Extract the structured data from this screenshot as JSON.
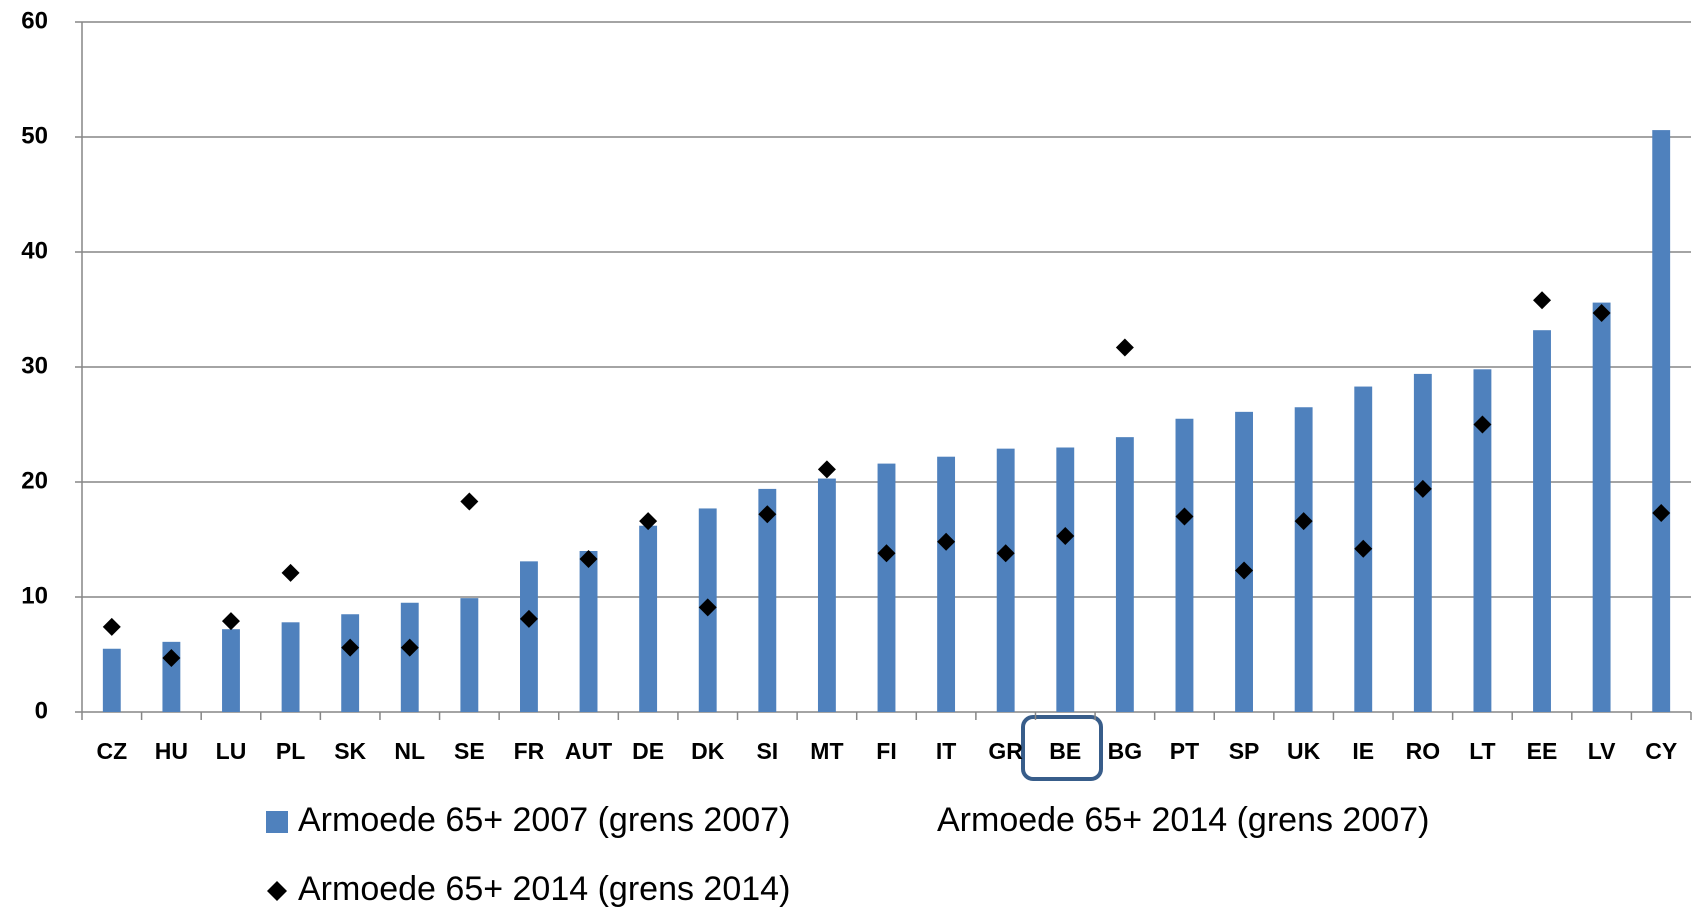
{
  "chart_data": {
    "type": "bar",
    "categories": [
      "CZ",
      "HU",
      "LU",
      "PL",
      "SK",
      "NL",
      "SE",
      "FR",
      "AUT",
      "DE",
      "DK",
      "SI",
      "MT",
      "FI",
      "IT",
      "GR",
      "BE",
      "BG",
      "PT",
      "SP",
      "UK",
      "IE",
      "RO",
      "LT",
      "EE",
      "LV",
      "CY"
    ],
    "series": [
      {
        "name": "Armoede 65+ 2007 (grens 2007)",
        "type": "bar",
        "color": "#4f81bd",
        "values": [
          5.5,
          6.1,
          7.2,
          7.8,
          8.5,
          9.5,
          9.9,
          13.1,
          14.0,
          16.2,
          17.7,
          19.4,
          20.3,
          21.6,
          22.2,
          22.9,
          23.0,
          23.9,
          25.5,
          26.1,
          26.5,
          28.3,
          29.4,
          29.8,
          33.2,
          35.6,
          50.6
        ]
      },
      {
        "name": "Armoede 65+ 2014 (grens 2007)",
        "type": "bar",
        "values": [
          null,
          null,
          null,
          null,
          null,
          null,
          null,
          null,
          null,
          null,
          null,
          null,
          null,
          null,
          null,
          null,
          null,
          null,
          null,
          null,
          null,
          null,
          null,
          null,
          null,
          null,
          null
        ]
      },
      {
        "name": "Armoede 65+ 2014 (grens 2014)",
        "type": "scatter",
        "color": "#000000",
        "values": [
          7.4,
          4.7,
          7.9,
          12.1,
          5.6,
          5.6,
          18.3,
          8.1,
          13.3,
          16.6,
          9.1,
          17.2,
          21.1,
          13.8,
          14.8,
          13.8,
          15.3,
          31.7,
          17.0,
          12.3,
          16.6,
          14.2,
          19.4,
          25.0,
          35.8,
          34.7,
          17.3
        ]
      }
    ],
    "ylim": [
      0,
      60
    ],
    "yticks": [
      0,
      10,
      20,
      30,
      40,
      50,
      60
    ],
    "grid": true
  }
}
